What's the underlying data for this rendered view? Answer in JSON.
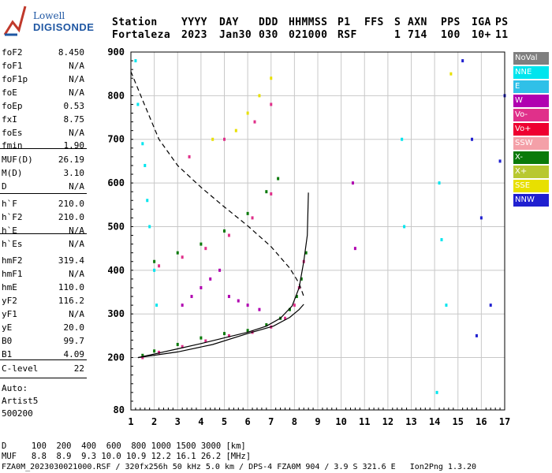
{
  "header": {
    "logo_line1": "Lowell",
    "logo_line2": "DIGISONDE",
    "labels": [
      "Station",
      "YYYY",
      "DAY",
      "DDD",
      "HHMMSS",
      "P1",
      "FFS",
      "S",
      "AXN",
      "PPS",
      "IGA",
      "PS"
    ],
    "values": [
      "Fortaleza",
      "2023",
      "Jan30",
      "030",
      "021000",
      "RSF",
      "",
      "1",
      "714",
      "100",
      "10+",
      "11"
    ]
  },
  "params": [
    {
      "name": "foF2",
      "value": "8.450"
    },
    {
      "name": "foF1",
      "value": "N/A"
    },
    {
      "name": "foF1p",
      "value": "N/A"
    },
    {
      "name": "foE",
      "value": "N/A"
    },
    {
      "name": "foEp",
      "value": "0.53"
    },
    {
      "name": "fxI",
      "value": "8.75"
    },
    {
      "name": "foEs",
      "value": "N/A"
    },
    {
      "name": "fmin",
      "value": "1.90"
    },
    {
      "name": "MUF(D)",
      "value": "26.19"
    },
    {
      "name": "M(D)",
      "value": "3.10"
    },
    {
      "name": "D",
      "value": "N/A"
    },
    {
      "name": "h`F",
      "value": "210.0"
    },
    {
      "name": "h`F2",
      "value": "210.0"
    },
    {
      "name": "h`E",
      "value": "N/A"
    },
    {
      "name": "h`Es",
      "value": "N/A"
    },
    {
      "name": "hmF2",
      "value": "319.4"
    },
    {
      "name": "hmF1",
      "value": "N/A"
    },
    {
      "name": "hmE",
      "value": "110.0"
    },
    {
      "name": "yF2",
      "value": "116.2"
    },
    {
      "name": "yF1",
      "value": "N/A"
    },
    {
      "name": "yE",
      "value": "20.0"
    },
    {
      "name": "B0",
      "value": "99.7"
    },
    {
      "name": "B1",
      "value": "4.09"
    },
    {
      "name": "C-level",
      "value": "22"
    }
  ],
  "auto": {
    "line1": "Auto:",
    "line2": "Artist5",
    "line3": "500200"
  },
  "footer": {
    "d_row": "D     100  200  400  600  800 1000 1500 3000 [km]",
    "muf_row": "MUF   8.8  8.9  9.3 10.0 10.9 12.2 16.1 26.2 [MHz]",
    "file_row": "FZA0M_2023030021000.RSF / 320fx256h 50 kHz 5.0 km / DPS-4 FZA0M 904 / 3.9 S 321.6 E   Ion2Png 1.3.20"
  },
  "legend": [
    {
      "label": "NoVal",
      "color": "#7f7f7f"
    },
    {
      "label": "NNE",
      "color": "#00e5ee"
    },
    {
      "label": "E",
      "color": "#30c0e8"
    },
    {
      "label": "W",
      "color": "#b000b0"
    },
    {
      "label": "Vo-",
      "color": "#e0308a"
    },
    {
      "label": "Vo+",
      "color": "#ee0030"
    },
    {
      "label": "SSW",
      "color": "#f4a0a8"
    },
    {
      "label": "X-",
      "color": "#0a7a0a"
    },
    {
      "label": "X+",
      "color": "#b8c830"
    },
    {
      "label": "SSE",
      "color": "#e8e000"
    },
    {
      "label": "NNW",
      "color": "#2020d0"
    }
  ],
  "chart_data": {
    "type": "scatter",
    "xlabel": "",
    "ylabel": "",
    "xlim": [
      1,
      17
    ],
    "ylim": [
      80,
      900
    ],
    "x_ticks": [
      "1",
      "2",
      "3",
      "4",
      "5",
      "6",
      "7",
      "8",
      "9",
      "10",
      "11",
      "12",
      "13",
      "14",
      "15",
      "16",
      "17"
    ],
    "y_ticks": [
      "80",
      "200",
      "300",
      "400",
      "500",
      "600",
      "700",
      "800",
      "900"
    ],
    "y_tick_values": [
      80,
      200,
      300,
      400,
      500,
      600,
      700,
      800,
      900
    ],
    "series": [
      {
        "name": "X-",
        "color": "#0a7a0a",
        "points": [
          [
            1.5,
            205
          ],
          [
            2.0,
            215
          ],
          [
            3.0,
            230
          ],
          [
            4.0,
            245
          ],
          [
            5.0,
            255
          ],
          [
            6.0,
            262
          ],
          [
            6.8,
            275
          ],
          [
            7.4,
            290
          ],
          [
            7.8,
            310
          ],
          [
            8.1,
            340
          ],
          [
            8.3,
            380
          ],
          [
            8.5,
            440
          ],
          [
            2.0,
            420
          ],
          [
            3.0,
            440
          ],
          [
            4.0,
            460
          ],
          [
            5.0,
            490
          ],
          [
            6.0,
            530
          ],
          [
            6.8,
            580
          ],
          [
            7.3,
            610
          ]
        ]
      },
      {
        "name": "Vo-",
        "color": "#e0308a",
        "points": [
          [
            1.5,
            200
          ],
          [
            2.2,
            212
          ],
          [
            3.2,
            225
          ],
          [
            4.2,
            238
          ],
          [
            5.2,
            250
          ],
          [
            6.2,
            258
          ],
          [
            7.0,
            270
          ],
          [
            7.6,
            290
          ],
          [
            8.0,
            320
          ],
          [
            8.2,
            360
          ],
          [
            8.4,
            420
          ],
          [
            2.2,
            410
          ],
          [
            3.2,
            430
          ],
          [
            4.2,
            450
          ],
          [
            5.2,
            480
          ],
          [
            6.2,
            520
          ],
          [
            7.0,
            575
          ],
          [
            3.5,
            660
          ],
          [
            5.0,
            700
          ],
          [
            6.3,
            740
          ],
          [
            7.0,
            780
          ]
        ]
      },
      {
        "name": "W",
        "color": "#b000b0",
        "points": [
          [
            3.2,
            320
          ],
          [
            3.6,
            340
          ],
          [
            4.0,
            360
          ],
          [
            4.4,
            380
          ],
          [
            4.8,
            400
          ],
          [
            5.2,
            340
          ],
          [
            5.6,
            330
          ],
          [
            6.0,
            320
          ],
          [
            6.5,
            310
          ],
          [
            10.5,
            600
          ],
          [
            10.6,
            450
          ]
        ]
      },
      {
        "name": "NNE",
        "color": "#00e5ee",
        "points": [
          [
            1.2,
            880
          ],
          [
            1.3,
            780
          ],
          [
            1.5,
            690
          ],
          [
            1.6,
            640
          ],
          [
            1.7,
            560
          ],
          [
            1.8,
            500
          ],
          [
            2.0,
            400
          ],
          [
            2.1,
            320
          ],
          [
            12.6,
            700
          ],
          [
            12.7,
            500
          ],
          [
            14.2,
            600
          ],
          [
            14.3,
            470
          ],
          [
            14.5,
            320
          ],
          [
            14.1,
            120
          ]
        ]
      },
      {
        "name": "SSE",
        "color": "#e8e000",
        "points": [
          [
            5.5,
            720
          ],
          [
            6.0,
            760
          ],
          [
            6.5,
            800
          ],
          [
            7.0,
            840
          ],
          [
            4.5,
            700
          ],
          [
            14.7,
            850
          ]
        ]
      },
      {
        "name": "NNW",
        "color": "#2020d0",
        "points": [
          [
            15.2,
            880
          ],
          [
            15.6,
            700
          ],
          [
            16.0,
            520
          ],
          [
            16.4,
            320
          ],
          [
            16.8,
            650
          ],
          [
            17.0,
            800
          ],
          [
            15.8,
            250
          ]
        ]
      }
    ],
    "curves": [
      {
        "style": "solid",
        "points": [
          [
            1.3,
            200
          ],
          [
            2,
            208
          ],
          [
            3,
            220
          ],
          [
            4,
            232
          ],
          [
            5,
            245
          ],
          [
            6,
            258
          ],
          [
            6.8,
            272
          ],
          [
            7.4,
            290
          ],
          [
            7.9,
            318
          ],
          [
            8.2,
            360
          ],
          [
            8.4,
            420
          ],
          [
            8.55,
            480
          ],
          [
            8.6,
            578
          ]
        ]
      },
      {
        "style": "solid",
        "points": [
          [
            1.3,
            200
          ],
          [
            3,
            213
          ],
          [
            4.5,
            230
          ],
          [
            6,
            255
          ],
          [
            7.1,
            272
          ],
          [
            7.8,
            292
          ],
          [
            8.2,
            310
          ],
          [
            8.4,
            322
          ]
        ]
      },
      {
        "style": "dashed",
        "points": [
          [
            1.0,
            855
          ],
          [
            1.5,
            790
          ],
          [
            2.2,
            700
          ],
          [
            3.0,
            640
          ],
          [
            4.0,
            590
          ],
          [
            5.0,
            545
          ],
          [
            6.0,
            502
          ],
          [
            7.0,
            454
          ],
          [
            7.8,
            405
          ],
          [
            8.2,
            370
          ],
          [
            8.4,
            340
          ]
        ]
      }
    ]
  }
}
